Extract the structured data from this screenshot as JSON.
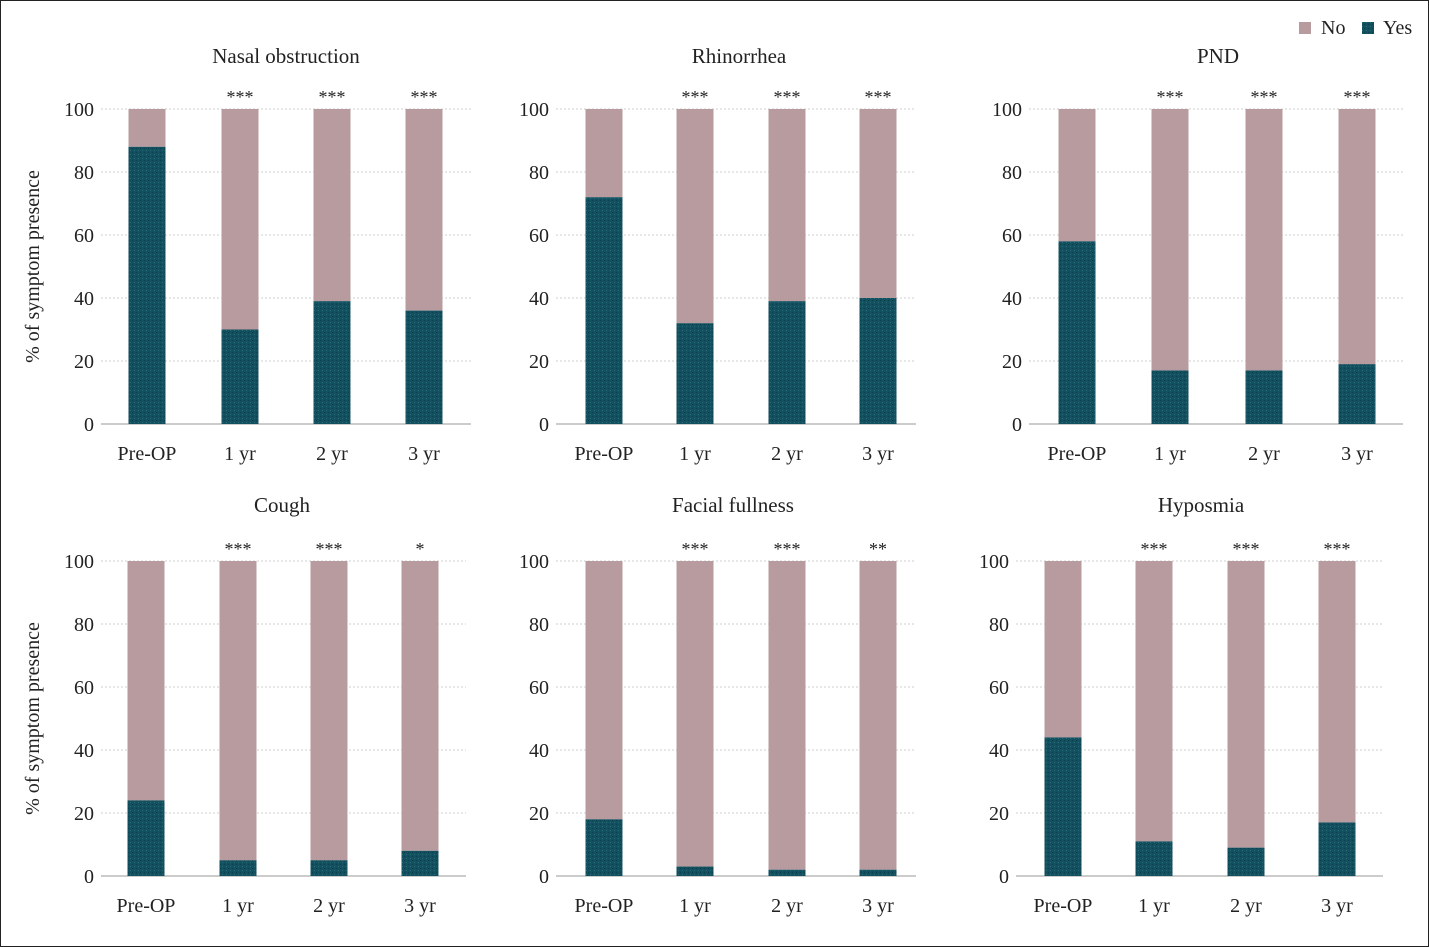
{
  "legend": {
    "entries": [
      {
        "name": "No",
        "color": "#b89b9f"
      },
      {
        "name": "Yes",
        "color": "#13505f"
      }
    ],
    "position": "top-right"
  },
  "y_axis_label": "% of symptom presence",
  "chart_data": [
    {
      "type": "bar",
      "stacked": true,
      "title": "Nasal obstruction",
      "categories": [
        "Pre-OP",
        "1 yr",
        "2 yr",
        "3 yr"
      ],
      "series": [
        {
          "name": "Yes",
          "values": [
            88,
            30,
            39,
            36
          ]
        },
        {
          "name": "No",
          "values": [
            12,
            70,
            61,
            64
          ]
        }
      ],
      "significance": [
        "",
        "***",
        "***",
        "***"
      ],
      "yticks": [
        0,
        20,
        40,
        60,
        80,
        100
      ],
      "ylim": [
        0,
        100
      ],
      "ylabel": "% of symptom presence",
      "grid": true
    },
    {
      "type": "bar",
      "stacked": true,
      "title": "Rhinorrhea",
      "categories": [
        "Pre-OP",
        "1 yr",
        "2 yr",
        "3 yr"
      ],
      "series": [
        {
          "name": "Yes",
          "values": [
            72,
            32,
            39,
            40
          ]
        },
        {
          "name": "No",
          "values": [
            28,
            68,
            61,
            60
          ]
        }
      ],
      "significance": [
        "",
        "***",
        "***",
        "***"
      ],
      "yticks": [
        0,
        20,
        40,
        60,
        80,
        100
      ],
      "ylim": [
        0,
        100
      ],
      "ylabel": "",
      "grid": true
    },
    {
      "type": "bar",
      "stacked": true,
      "title": "PND",
      "categories": [
        "Pre-OP",
        "1 yr",
        "2 yr",
        "3 yr"
      ],
      "series": [
        {
          "name": "Yes",
          "values": [
            58,
            17,
            17,
            19
          ]
        },
        {
          "name": "No",
          "values": [
            42,
            83,
            83,
            81
          ]
        }
      ],
      "significance": [
        "",
        "***",
        "***",
        "***"
      ],
      "yticks": [
        0,
        20,
        40,
        60,
        80,
        100
      ],
      "ylim": [
        0,
        100
      ],
      "ylabel": "",
      "grid": true
    },
    {
      "type": "bar",
      "stacked": true,
      "title": "Cough",
      "categories": [
        "Pre-OP",
        "1 yr",
        "2 yr",
        "3 yr"
      ],
      "series": [
        {
          "name": "Yes",
          "values": [
            24,
            5,
            5,
            8
          ]
        },
        {
          "name": "No",
          "values": [
            76,
            95,
            95,
            92
          ]
        }
      ],
      "significance": [
        "",
        "***",
        "***",
        "*"
      ],
      "yticks": [
        0,
        20,
        40,
        60,
        80,
        100
      ],
      "ylim": [
        0,
        100
      ],
      "ylabel": "% of symptom presence",
      "grid": true
    },
    {
      "type": "bar",
      "stacked": true,
      "title": "Facial fullness",
      "categories": [
        "Pre-OP",
        "1 yr",
        "2 yr",
        "3 yr"
      ],
      "series": [
        {
          "name": "Yes",
          "values": [
            18,
            3,
            2,
            2
          ]
        },
        {
          "name": "No",
          "values": [
            82,
            97,
            98,
            98
          ]
        }
      ],
      "significance": [
        "",
        "***",
        "***",
        "**"
      ],
      "yticks": [
        0,
        20,
        40,
        60,
        80,
        100
      ],
      "ylim": [
        0,
        100
      ],
      "ylabel": "",
      "grid": true
    },
    {
      "type": "bar",
      "stacked": true,
      "title": "Hyposmia",
      "categories": [
        "Pre-OP",
        "1 yr",
        "2 yr",
        "3 yr"
      ],
      "series": [
        {
          "name": "Yes",
          "values": [
            44,
            11,
            9,
            17
          ]
        },
        {
          "name": "No",
          "values": [
            56,
            89,
            91,
            83
          ]
        }
      ],
      "significance": [
        "",
        "***",
        "***",
        "***"
      ],
      "yticks": [
        0,
        20,
        40,
        60,
        80,
        100
      ],
      "ylim": [
        0,
        100
      ],
      "ylabel": "",
      "grid": true
    }
  ]
}
